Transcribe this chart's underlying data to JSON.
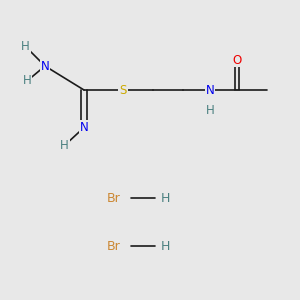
{
  "bg_color": "#e8e8e8",
  "bond_color": "#1a1a1a",
  "bond_width": 1.2,
  "atom_colors": {
    "H": "#4a8080",
    "N": "#0000ee",
    "S": "#ccaa00",
    "O": "#ee0000",
    "Br": "#cc8833"
  },
  "font_size": 8.5,
  "font_size_hbr": 9.0
}
